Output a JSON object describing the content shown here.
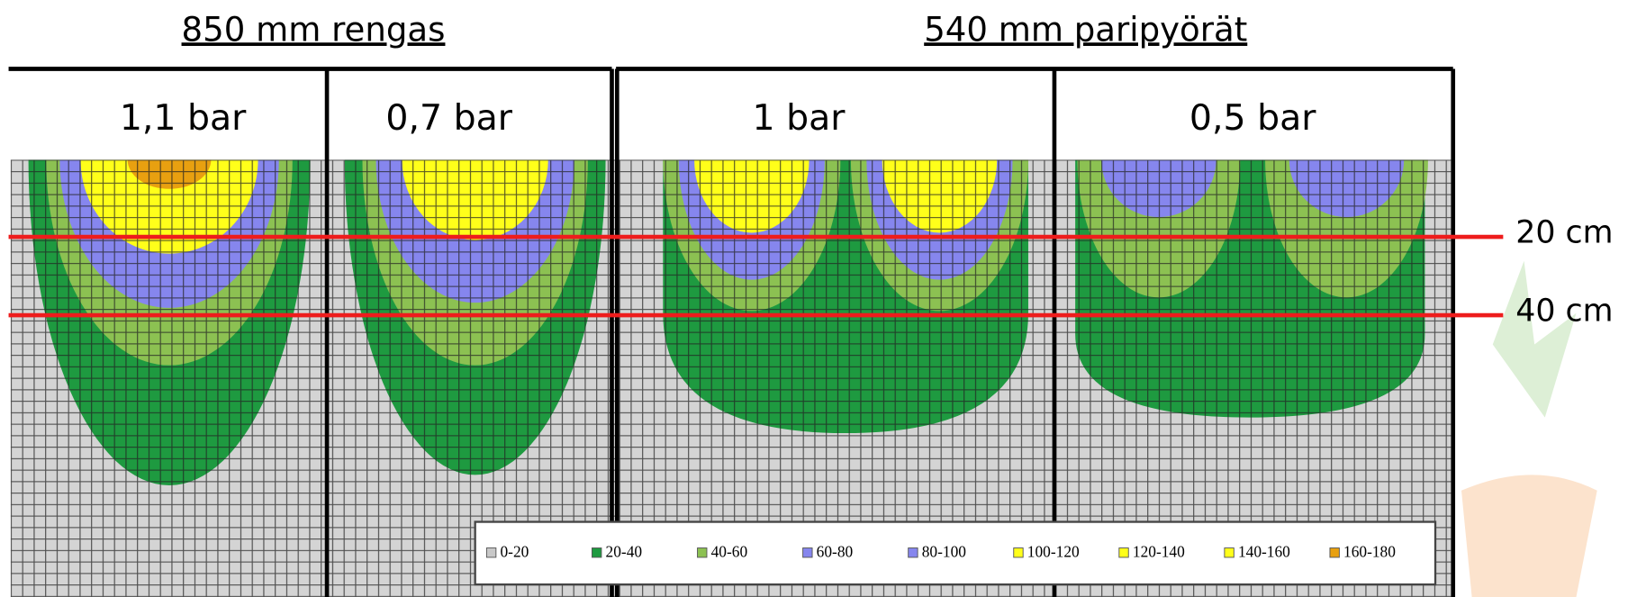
{
  "groups": [
    {
      "title": "850 mm  rengas"
    },
    {
      "title": "540 mm paripyörät"
    }
  ],
  "panels": [
    {
      "label": "1,1 bar"
    },
    {
      "label": "0,7 bar"
    },
    {
      "label": "1 bar"
    },
    {
      "label": "0,5 bar"
    }
  ],
  "depth_lines": [
    {
      "label": "20 cm",
      "color": "#ee1c1c"
    },
    {
      "label": "40 cm",
      "color": "#ee1c1c"
    }
  ],
  "legend": [
    {
      "label": "0-20",
      "color": "#c8c8c8"
    },
    {
      "label": "20-40",
      "color": "#1e9a40"
    },
    {
      "label": "40-60",
      "color": "#8cc152"
    },
    {
      "label": "60-80",
      "color": "#8686ee"
    },
    {
      "label": "80-100",
      "color": "#8686ee"
    },
    {
      "label": "100-120",
      "color": "#ffff1a"
    },
    {
      "label": "120-140",
      "color": "#ffff1a"
    },
    {
      "label": "140-160",
      "color": "#ffff1a"
    },
    {
      "label": "160-180",
      "color": "#e8a010"
    }
  ]
}
